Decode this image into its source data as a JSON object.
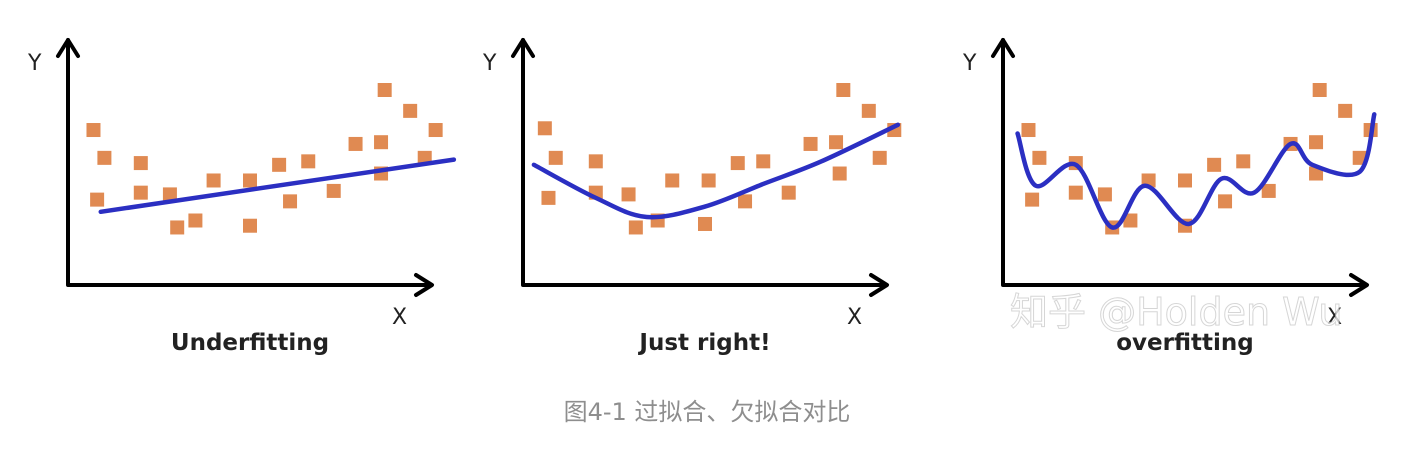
{
  "chart_data": [
    {
      "type": "scatter",
      "title": "Underfitting",
      "xlabel": "X",
      "ylabel": "Y",
      "fit": "linear",
      "xlim": [
        0,
        10
      ],
      "ylim": [
        0,
        10
      ],
      "points": [
        [
          0.7,
          7.7
        ],
        [
          1.0,
          6.1
        ],
        [
          0.8,
          3.7
        ],
        [
          2.0,
          5.8
        ],
        [
          2.0,
          4.1
        ],
        [
          2.8,
          4.0
        ],
        [
          3.0,
          2.1
        ],
        [
          3.5,
          2.5
        ],
        [
          4.0,
          4.8
        ],
        [
          5.0,
          2.2
        ],
        [
          5.0,
          4.8
        ],
        [
          5.8,
          5.7
        ],
        [
          6.1,
          3.6
        ],
        [
          6.6,
          5.9
        ],
        [
          7.3,
          4.2
        ],
        [
          7.9,
          6.9
        ],
        [
          8.6,
          7.0
        ],
        [
          8.6,
          5.2
        ],
        [
          8.7,
          10.0
        ],
        [
          9.4,
          8.8
        ],
        [
          9.8,
          6.1
        ],
        [
          10.1,
          7.7
        ]
      ],
      "fit_line": [
        [
          0.9,
          3.0
        ],
        [
          10.6,
          6.0
        ]
      ]
    },
    {
      "type": "scatter",
      "title": "Just right!",
      "xlabel": "X",
      "ylabel": "Y",
      "fit": "quadratic",
      "xlim": [
        0,
        10
      ],
      "ylim": [
        0,
        10
      ],
      "points": [
        [
          0.6,
          7.8
        ],
        [
          0.9,
          6.1
        ],
        [
          0.7,
          3.8
        ],
        [
          2.0,
          5.9
        ],
        [
          2.0,
          4.1
        ],
        [
          2.9,
          4.0
        ],
        [
          3.1,
          2.1
        ],
        [
          3.7,
          2.5
        ],
        [
          4.1,
          4.8
        ],
        [
          5.0,
          2.3
        ],
        [
          5.1,
          4.8
        ],
        [
          5.9,
          5.8
        ],
        [
          6.1,
          3.6
        ],
        [
          6.6,
          5.9
        ],
        [
          7.3,
          4.1
        ],
        [
          7.9,
          6.9
        ],
        [
          8.6,
          7.0
        ],
        [
          8.7,
          5.2
        ],
        [
          8.8,
          10.0
        ],
        [
          9.5,
          8.8
        ],
        [
          9.8,
          6.1
        ],
        [
          10.2,
          7.7
        ]
      ],
      "fit_curve": [
        [
          0.3,
          5.7
        ],
        [
          2.0,
          3.8
        ],
        [
          3.4,
          2.7
        ],
        [
          5.0,
          3.3
        ],
        [
          6.6,
          4.6
        ],
        [
          8.2,
          5.9
        ],
        [
          10.3,
          8.0
        ]
      ]
    },
    {
      "type": "scatter",
      "title": "overfitting",
      "xlabel": "X",
      "ylabel": "Y",
      "fit": "high-degree polynomial",
      "xlim": [
        0,
        10
      ],
      "ylim": [
        0,
        10
      ],
      "points": [
        [
          0.7,
          7.7
        ],
        [
          1.0,
          6.1
        ],
        [
          0.8,
          3.7
        ],
        [
          2.0,
          5.8
        ],
        [
          2.0,
          4.1
        ],
        [
          2.8,
          4.0
        ],
        [
          3.0,
          2.1
        ],
        [
          3.5,
          2.5
        ],
        [
          4.0,
          4.8
        ],
        [
          5.0,
          2.2
        ],
        [
          5.0,
          4.8
        ],
        [
          5.8,
          5.7
        ],
        [
          6.1,
          3.6
        ],
        [
          6.6,
          5.9
        ],
        [
          7.3,
          4.2
        ],
        [
          7.9,
          6.9
        ],
        [
          8.6,
          7.0
        ],
        [
          8.6,
          5.2
        ],
        [
          8.7,
          10.0
        ],
        [
          9.4,
          8.8
        ],
        [
          9.8,
          6.1
        ],
        [
          10.1,
          7.7
        ]
      ],
      "fit_curve": [
        [
          0.4,
          7.5
        ],
        [
          0.9,
          4.5
        ],
        [
          2.0,
          5.7
        ],
        [
          3.0,
          2.1
        ],
        [
          3.9,
          4.5
        ],
        [
          5.1,
          2.3
        ],
        [
          6.0,
          4.9
        ],
        [
          6.9,
          4.1
        ],
        [
          7.9,
          6.9
        ],
        [
          8.5,
          5.7
        ],
        [
          9.8,
          5.3
        ],
        [
          10.2,
          8.6
        ]
      ]
    }
  ],
  "watermark": "知乎 @Holden Wu",
  "caption": "图4-1 过拟合、欠拟合对比"
}
